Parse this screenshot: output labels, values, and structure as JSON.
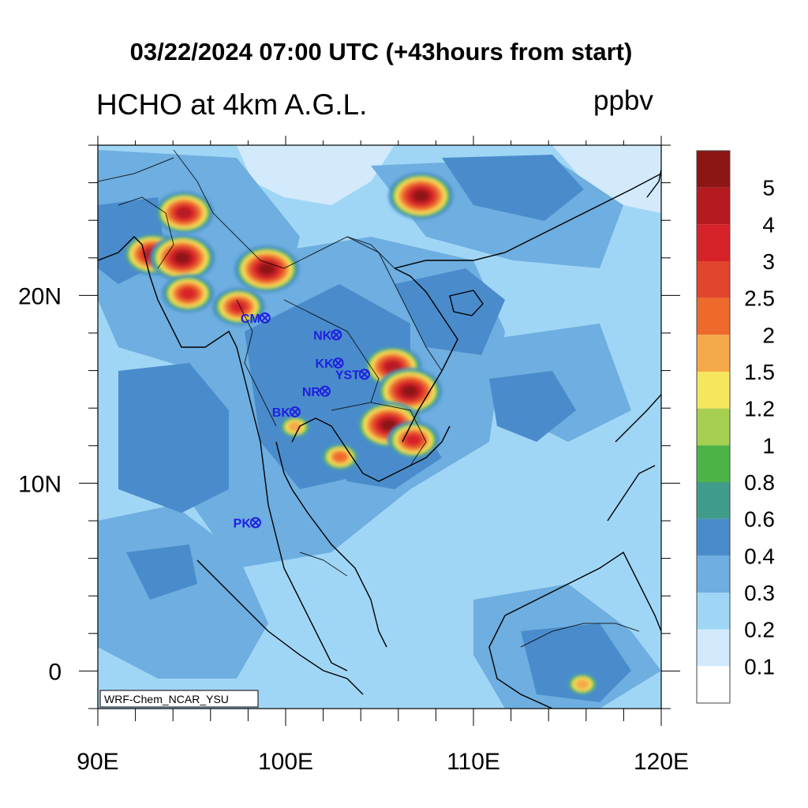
{
  "title": "03/22/2024 07:00 UTC (+43hours from start)",
  "variable_title": "HCHO at 4km A.G.L.",
  "units": "ppbv",
  "model_tag": "WRF-Chem_NCAR_YSU",
  "map": {
    "lon_range": [
      90,
      120
    ],
    "lat_range": [
      -2,
      28
    ],
    "x_ticks": [
      {
        "value": 90,
        "label": "90E"
      },
      {
        "value": 100,
        "label": "100E"
      },
      {
        "value": 110,
        "label": "110E"
      },
      {
        "value": 120,
        "label": "120E"
      }
    ],
    "y_ticks": [
      {
        "value": 20,
        "label": "20N"
      },
      {
        "value": 10,
        "label": "10N"
      },
      {
        "value": 0,
        "label": "0"
      }
    ],
    "stations": [
      {
        "label": "CM",
        "lon": 98.9,
        "lat": 18.8
      },
      {
        "label": "NK",
        "lon": 102.7,
        "lat": 17.9
      },
      {
        "label": "KK",
        "lon": 102.8,
        "lat": 16.4
      },
      {
        "label": "YST",
        "lon": 104.2,
        "lat": 15.8
      },
      {
        "label": "NR",
        "lon": 102.1,
        "lat": 14.9
      },
      {
        "label": "BK",
        "lon": 100.5,
        "lat": 13.8
      },
      {
        "label": "PK",
        "lon": 98.4,
        "lat": 7.9
      }
    ],
    "station_color": "#1f1fe0",
    "hotspots": [
      {
        "lon": 107.2,
        "lat": 25.3,
        "peak": 5
      },
      {
        "lon": 92.9,
        "lat": 22.2,
        "peak": 4
      },
      {
        "lon": 94.6,
        "lat": 24.4,
        "peak": 4
      },
      {
        "lon": 94.5,
        "lat": 22.0,
        "peak": 5
      },
      {
        "lon": 94.8,
        "lat": 20.1,
        "peak": 3
      },
      {
        "lon": 97.5,
        "lat": 19.4,
        "peak": 3
      },
      {
        "lon": 99.0,
        "lat": 21.4,
        "peak": 5
      },
      {
        "lon": 105.7,
        "lat": 16.2,
        "peak": 4
      },
      {
        "lon": 106.6,
        "lat": 14.9,
        "peak": 5
      },
      {
        "lon": 105.5,
        "lat": 13.1,
        "peak": 5
      },
      {
        "lon": 106.8,
        "lat": 12.3,
        "peak": 3
      },
      {
        "lon": 100.5,
        "lat": 13.0,
        "peak": 1.5
      },
      {
        "lon": 115.8,
        "lat": -0.7,
        "peak": 1.5
      },
      {
        "lon": 102.9,
        "lat": 11.4,
        "peak": 2
      }
    ]
  },
  "colorbar": {
    "colors": [
      "#ffffff",
      "#d2eafc",
      "#a0d6f5",
      "#6eaee0",
      "#4a8ccb",
      "#3f9c8a",
      "#4db346",
      "#a7cf51",
      "#f5e65d",
      "#f5a84a",
      "#ee6a2c",
      "#e1452d",
      "#d7222a",
      "#b51a20",
      "#8c1516"
    ],
    "tick_labels": [
      "0.1",
      "0.2",
      "0.3",
      "0.4",
      "0.6",
      "0.8",
      "1",
      "1.2",
      "1.5",
      "2",
      "2.5",
      "3",
      "4",
      "5"
    ]
  }
}
